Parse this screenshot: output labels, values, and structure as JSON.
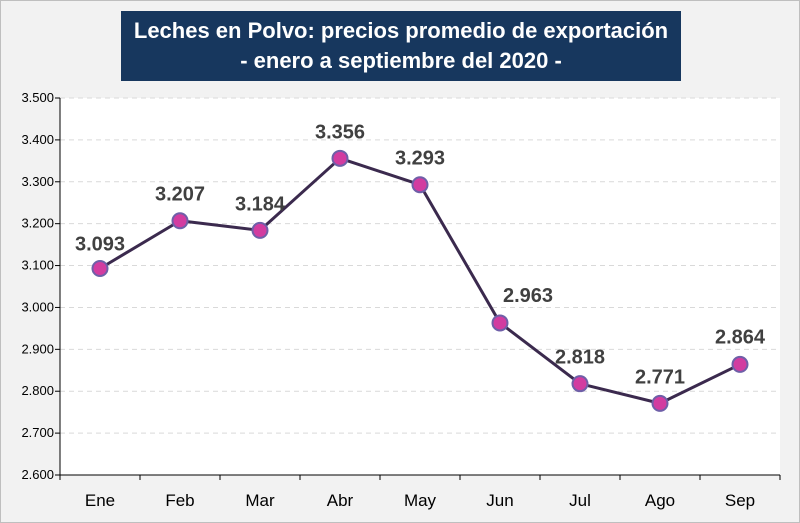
{
  "chart_data": {
    "type": "line",
    "title": "Leches en Polvo: precios promedio de exportación",
    "subtitle": "- enero a septiembre del 2020 -",
    "categories": [
      "Ene",
      "Feb",
      "Mar",
      "Abr",
      "May",
      "Jun",
      "Jul",
      "Ago",
      "Sep"
    ],
    "values": [
      3093,
      3207,
      3184,
      3356,
      3293,
      2963,
      2818,
      2771,
      2864
    ],
    "data_labels": [
      "3.093",
      "3.207",
      "3.184",
      "3.356",
      "3.293",
      "2.963",
      "2.818",
      "2.771",
      "2.864"
    ],
    "ylim": [
      2600,
      3500
    ],
    "yticks": [
      2600,
      2700,
      2800,
      2900,
      3000,
      3100,
      3200,
      3300,
      3400,
      3500
    ],
    "ytick_labels": [
      "2.600",
      "2.700",
      "2.800",
      "2.900",
      "3.000",
      "3.100",
      "3.200",
      "3.300",
      "3.400",
      "3.500"
    ],
    "xlabel": "",
    "ylabel": "",
    "grid": true,
    "legend": "none",
    "colors": {
      "line": "#3b2a4e",
      "marker_fill": "#d23ca0",
      "marker_stroke": "#6f5fa8",
      "title_bg": "#17375e",
      "plot_bg": "#ffffff",
      "grid": "#d9d9d9"
    }
  }
}
